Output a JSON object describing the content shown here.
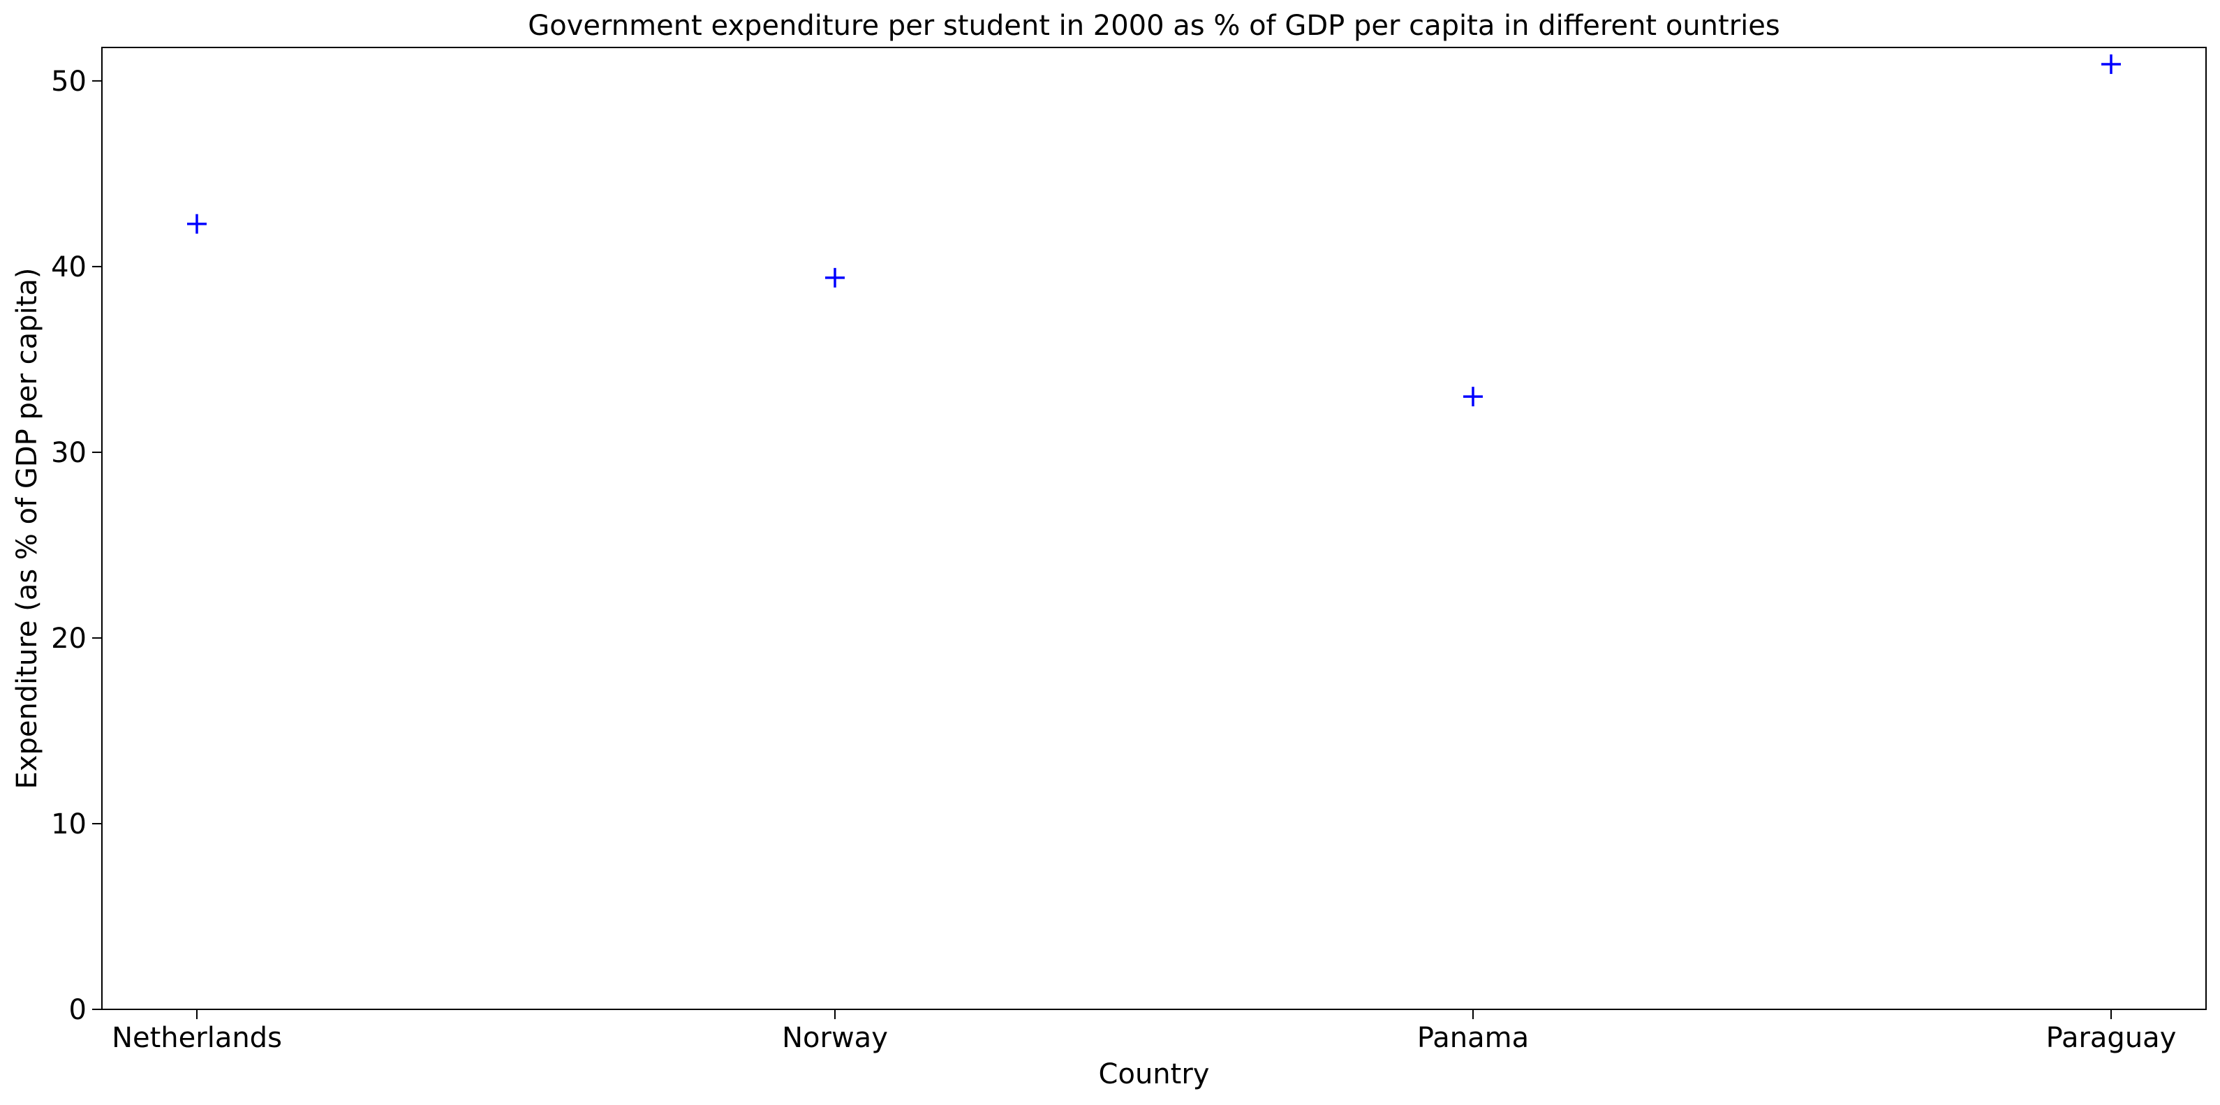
{
  "chart_data": {
    "type": "scatter",
    "title": "Government expenditure per student in 2000 as % of GDP per capita in different ountries",
    "xlabel": "Country",
    "ylabel": "Expenditure (as % of GDP per capita)",
    "categories": [
      "Netherlands",
      "Norway",
      "Panama",
      "Paraguay"
    ],
    "values": [
      42.3,
      39.4,
      33.0,
      50.9
    ],
    "ylim": [
      0,
      51.8
    ],
    "yticks": [
      0,
      10,
      20,
      30,
      40,
      50
    ],
    "ytick_labels": [
      "0",
      "10",
      "20",
      "30",
      "40",
      "50"
    ],
    "marker": "plus",
    "marker_color": "#0000ff",
    "grid": false,
    "legend": "none"
  }
}
